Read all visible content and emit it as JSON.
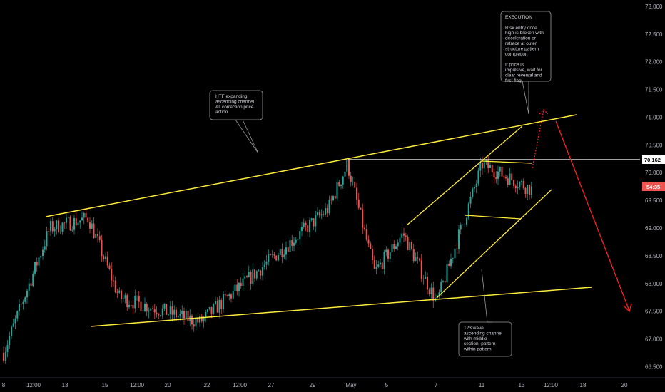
{
  "chart_data": {
    "type": "candlestick",
    "colors": {
      "up": "#26a69a",
      "down": "#ef5350",
      "channel": "#ffeb3b",
      "resistance": "#ffffff",
      "projection": "#ff1f1f",
      "background": "#000000",
      "text": "#b2b5be"
    },
    "y_axis": {
      "range": [
        66.3,
        73.05
      ],
      "ticks": [
        "73.000",
        "72.500",
        "72.000",
        "71.500",
        "71.000",
        "70.500",
        "70.000",
        "69.500",
        "69.000",
        "68.500",
        "68.000",
        "67.500",
        "67.000",
        "66.500"
      ]
    },
    "x_axis": {
      "ticks": [
        "8",
        "12:00",
        "13",
        "15",
        "12:00",
        "20",
        "22",
        "12:00",
        "27",
        "29",
        "May",
        "5",
        "7",
        "11",
        "13",
        "12:00",
        "18",
        "20"
      ]
    },
    "price_tags": {
      "level": "70.162",
      "countdown": "54:35"
    },
    "key_points": [
      {
        "label": "start",
        "price": 66.75
      },
      {
        "label": "early high",
        "price": 69.0
      },
      {
        "label": "high",
        "price": 69.18
      },
      {
        "label": "low",
        "price": 67.75
      },
      {
        "label": "low",
        "price": 67.3
      },
      {
        "label": "rally",
        "price": 69.35
      },
      {
        "label": "HTF high",
        "price": 70.15
      },
      {
        "label": "drop",
        "price": 68.2
      },
      {
        "label": "bounce",
        "price": 68.9
      },
      {
        "label": "low",
        "price": 67.65
      },
      {
        "label": "high",
        "price": 70.15
      },
      {
        "label": "current",
        "price": 69.7
      }
    ],
    "annotations": [
      {
        "name": "htf-note",
        "lines": [
          "HTF expanding",
          "ascending channel.",
          "All correction price",
          "action"
        ]
      },
      {
        "name": "execution-note",
        "lines": [
          "EXECUTION",
          "",
          "Risk entry once",
          "high is broken with",
          "deceleration or",
          "retrace at outer",
          "structure pattern",
          "completion",
          "",
          "If price is",
          "impulsive, wait for",
          "clear reversal and",
          "first flag"
        ]
      },
      {
        "name": "wave-note",
        "lines": [
          "123 wave",
          "ascending channel",
          "with middle",
          "section, pattern",
          "within pattern"
        ]
      }
    ]
  }
}
